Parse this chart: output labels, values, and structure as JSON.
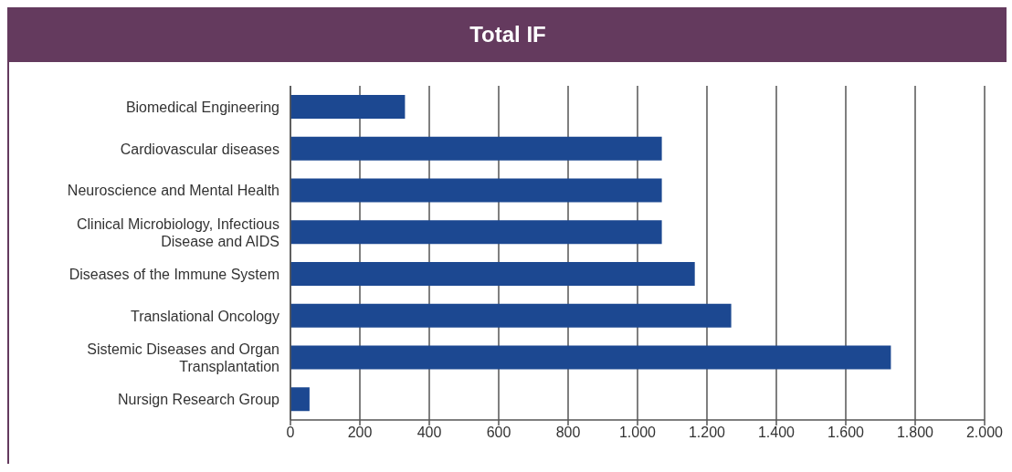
{
  "chart_data": {
    "type": "bar",
    "orientation": "horizontal",
    "title": "Total IF",
    "categories": [
      "Biomedical Engineering",
      "Cardiovascular diseases",
      "Neuroscience and Mental Health",
      "Clinical Microbiology, Infectious Disease and AIDS",
      "Diseases of the Immune System",
      "Translational Oncology",
      "Sistemic Diseases and Organ Transplantation",
      "Nursign Research Group"
    ],
    "values": [
      330,
      1070,
      1070,
      1070,
      1165,
      1270,
      1730,
      55
    ],
    "color": "#1c4891",
    "xlim": [
      0,
      2000
    ],
    "xticks": [
      0,
      200,
      400,
      600,
      800,
      {
        "value": 1000,
        "label": "1.000"
      },
      {
        "value": 1200,
        "label": "1.200"
      },
      {
        "value": 1400,
        "label": "1.400"
      },
      {
        "value": 1600,
        "label": "1.600"
      },
      {
        "value": 1800,
        "label": "1.800"
      },
      {
        "value": 2000,
        "label": "2.000"
      }
    ],
    "grid": "x",
    "legend": false
  }
}
